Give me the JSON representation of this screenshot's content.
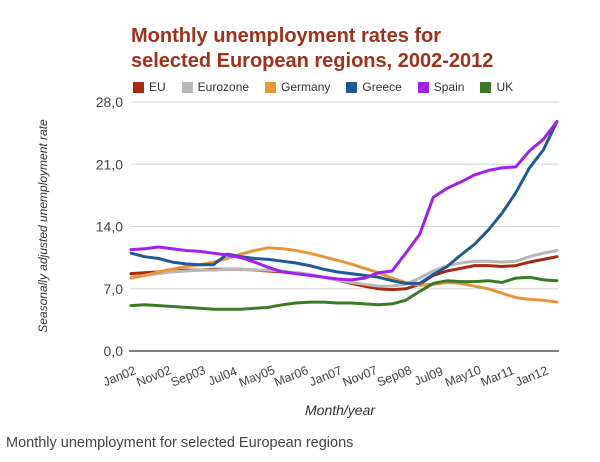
{
  "chart_data": {
    "type": "line",
    "title": "Monthly unemployment rates for selected European regions, 2002-2012",
    "xlabel": "Month/year",
    "ylabel": "Seasonally adjusted unemployment rate",
    "ylim": [
      0,
      28
    ],
    "yticks": [
      "0,0",
      "7,0",
      "14,0",
      "21,0",
      "28,0"
    ],
    "ytick_values": [
      0,
      7,
      14,
      21,
      28
    ],
    "xtick_labels": [
      "Jan02",
      "Nov02",
      "Sep03",
      "Jul04",
      "May05",
      "Mar06",
      "Jan07",
      "Nov07",
      "Sep08",
      "Jul09",
      "May10",
      "Mar11",
      "Jan12"
    ],
    "xtick_months": [
      0,
      10,
      20,
      30,
      40,
      50,
      60,
      70,
      80,
      90,
      100,
      110,
      120
    ],
    "grid": true,
    "legend_position": "top-left",
    "x_months": [
      0,
      4,
      8,
      12,
      16,
      20,
      24,
      28,
      32,
      36,
      40,
      44,
      48,
      52,
      56,
      60,
      64,
      68,
      72,
      76,
      80,
      84,
      88,
      92,
      96,
      100,
      104,
      108,
      112,
      116,
      120,
      124
    ],
    "series": [
      {
        "name": "EU",
        "color": "#a52a0f",
        "values": [
          8.7,
          8.8,
          8.9,
          9.0,
          9.1,
          9.1,
          9.2,
          9.2,
          9.2,
          9.1,
          9.0,
          8.9,
          8.8,
          8.6,
          8.3,
          8.0,
          7.6,
          7.3,
          7.0,
          6.9,
          7.0,
          7.5,
          8.5,
          9.0,
          9.3,
          9.6,
          9.6,
          9.5,
          9.6,
          10.0,
          10.3,
          10.6
        ]
      },
      {
        "name": "Eurozone",
        "color": "#b8b8b8",
        "values": [
          8.3,
          8.5,
          8.7,
          8.9,
          9.0,
          9.1,
          9.1,
          9.2,
          9.2,
          9.1,
          9.1,
          9.0,
          8.8,
          8.6,
          8.3,
          8.0,
          7.7,
          7.5,
          7.3,
          7.3,
          7.5,
          8.2,
          9.0,
          9.6,
          9.9,
          10.1,
          10.1,
          10.0,
          10.1,
          10.6,
          11.0,
          11.3
        ]
      },
      {
        "name": "Germany",
        "color": "#e8963c",
        "values": [
          8.2,
          8.5,
          8.9,
          9.2,
          9.5,
          9.7,
          10.0,
          10.4,
          10.9,
          11.3,
          11.6,
          11.5,
          11.3,
          11.0,
          10.6,
          10.2,
          9.8,
          9.3,
          8.8,
          8.2,
          7.7,
          7.4,
          7.5,
          7.7,
          7.6,
          7.3,
          7.0,
          6.5,
          6.0,
          5.8,
          5.7,
          5.5
        ]
      },
      {
        "name": "Greece",
        "color": "#1f5a96",
        "values": [
          11.0,
          10.6,
          10.4,
          10.0,
          9.8,
          9.7,
          9.7,
          10.9,
          10.6,
          10.4,
          10.3,
          10.1,
          9.9,
          9.6,
          9.2,
          8.9,
          8.7,
          8.5,
          8.3,
          7.9,
          7.6,
          7.6,
          8.6,
          9.5,
          10.8,
          12.0,
          13.6,
          15.5,
          17.8,
          20.6,
          22.6,
          25.8
        ]
      },
      {
        "name": "Spain",
        "color": "#a020f0",
        "values": [
          11.4,
          11.5,
          11.7,
          11.5,
          11.3,
          11.2,
          11.0,
          10.8,
          10.5,
          10.0,
          9.4,
          8.9,
          8.7,
          8.5,
          8.3,
          8.1,
          8.0,
          8.2,
          8.8,
          9.0,
          11.0,
          13.1,
          17.3,
          18.3,
          19.0,
          19.8,
          20.3,
          20.6,
          20.7,
          22.5,
          23.8,
          25.8
        ]
      },
      {
        "name": "UK",
        "color": "#3c7a28",
        "values": [
          5.1,
          5.2,
          5.1,
          5.0,
          4.9,
          4.8,
          4.7,
          4.7,
          4.7,
          4.8,
          4.9,
          5.2,
          5.4,
          5.5,
          5.5,
          5.4,
          5.4,
          5.3,
          5.2,
          5.3,
          5.7,
          6.7,
          7.6,
          7.9,
          7.8,
          7.8,
          7.9,
          7.7,
          8.2,
          8.3,
          8.0,
          7.9
        ]
      }
    ]
  },
  "caption": "Monthly unemployment for selected European regions",
  "title_line1": "Monthly unemployment rates for",
  "title_line2": "selected European regions, 2002-2012"
}
